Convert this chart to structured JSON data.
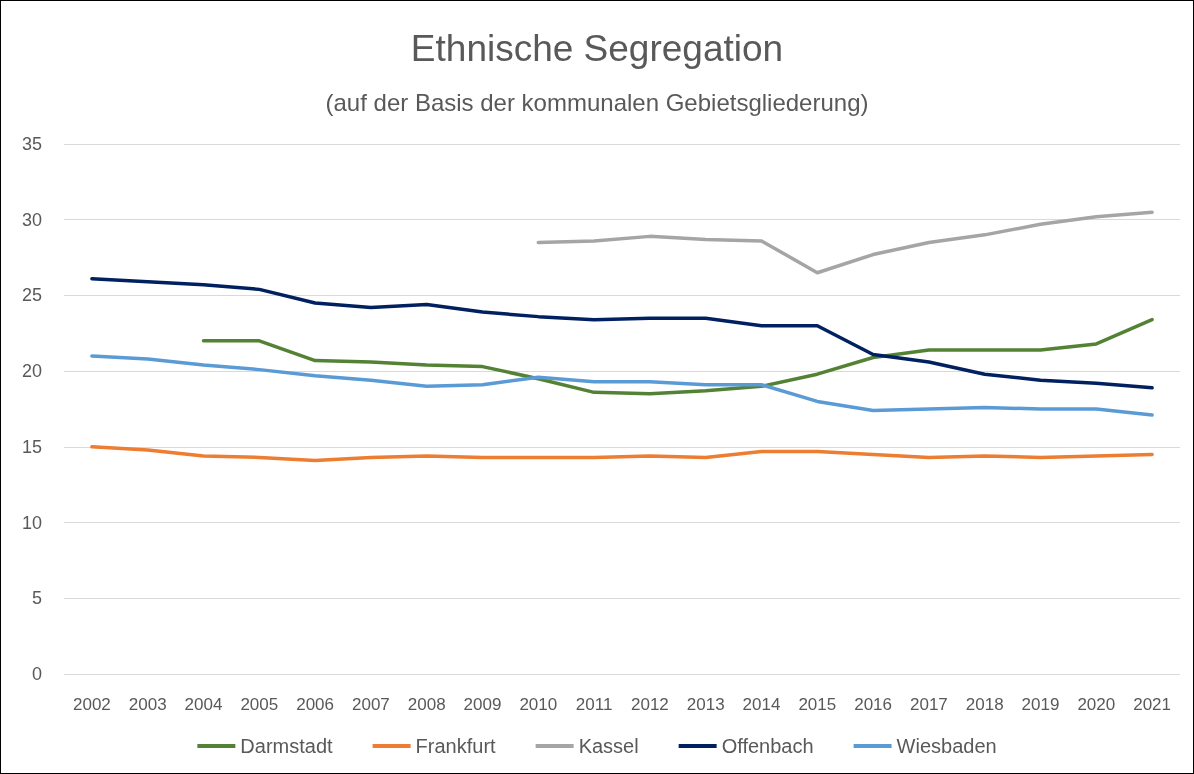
{
  "chart_data": {
    "type": "line",
    "title": "Ethnische Segregation",
    "subtitle": "(auf der Basis der kommunalen Gebietsgliederung)",
    "categories": [
      "2002",
      "2003",
      "2004",
      "2005",
      "2006",
      "2007",
      "2008",
      "2009",
      "2010",
      "2011",
      "2012",
      "2013",
      "2014",
      "2015",
      "2016",
      "2017",
      "2018",
      "2019",
      "2020",
      "2021"
    ],
    "series": [
      {
        "name": "Darmstadt",
        "color": "#548235",
        "values": [
          null,
          null,
          22.0,
          22.0,
          20.7,
          20.6,
          20.4,
          20.3,
          19.5,
          18.6,
          18.5,
          18.7,
          19.0,
          19.8,
          20.9,
          21.4,
          21.4,
          21.4,
          21.8,
          23.4
        ]
      },
      {
        "name": "Frankfurt",
        "color": "#ed7d31",
        "values": [
          15.0,
          14.8,
          14.4,
          14.3,
          14.1,
          14.3,
          14.4,
          14.3,
          14.3,
          14.3,
          14.4,
          14.3,
          14.7,
          14.7,
          14.5,
          14.3,
          14.4,
          14.3,
          14.4,
          14.5
        ]
      },
      {
        "name": "Kassel",
        "color": "#a5a5a5",
        "values": [
          null,
          null,
          null,
          null,
          null,
          null,
          null,
          null,
          28.5,
          28.6,
          28.9,
          28.7,
          28.6,
          26.5,
          27.7,
          28.5,
          29.0,
          29.7,
          30.2,
          30.5
        ]
      },
      {
        "name": "Offenbach",
        "color": "#002060",
        "values": [
          26.1,
          25.9,
          25.7,
          25.4,
          24.5,
          24.2,
          24.4,
          23.9,
          23.6,
          23.4,
          23.5,
          23.5,
          23.0,
          23.0,
          21.1,
          20.6,
          19.8,
          19.4,
          19.2,
          18.9
        ]
      },
      {
        "name": "Wiesbaden",
        "color": "#5b9bd5",
        "values": [
          21.0,
          20.8,
          20.4,
          20.1,
          19.7,
          19.4,
          19.0,
          19.1,
          19.6,
          19.3,
          19.3,
          19.1,
          19.1,
          18.0,
          17.4,
          17.5,
          17.6,
          17.5,
          17.5,
          17.1
        ]
      }
    ],
    "ylim": [
      0,
      35
    ],
    "yticks": [
      0,
      5,
      10,
      15,
      20,
      25,
      30,
      35
    ],
    "grid": "y",
    "legend": "bottom",
    "marker": "none",
    "line_style": "solid"
  }
}
